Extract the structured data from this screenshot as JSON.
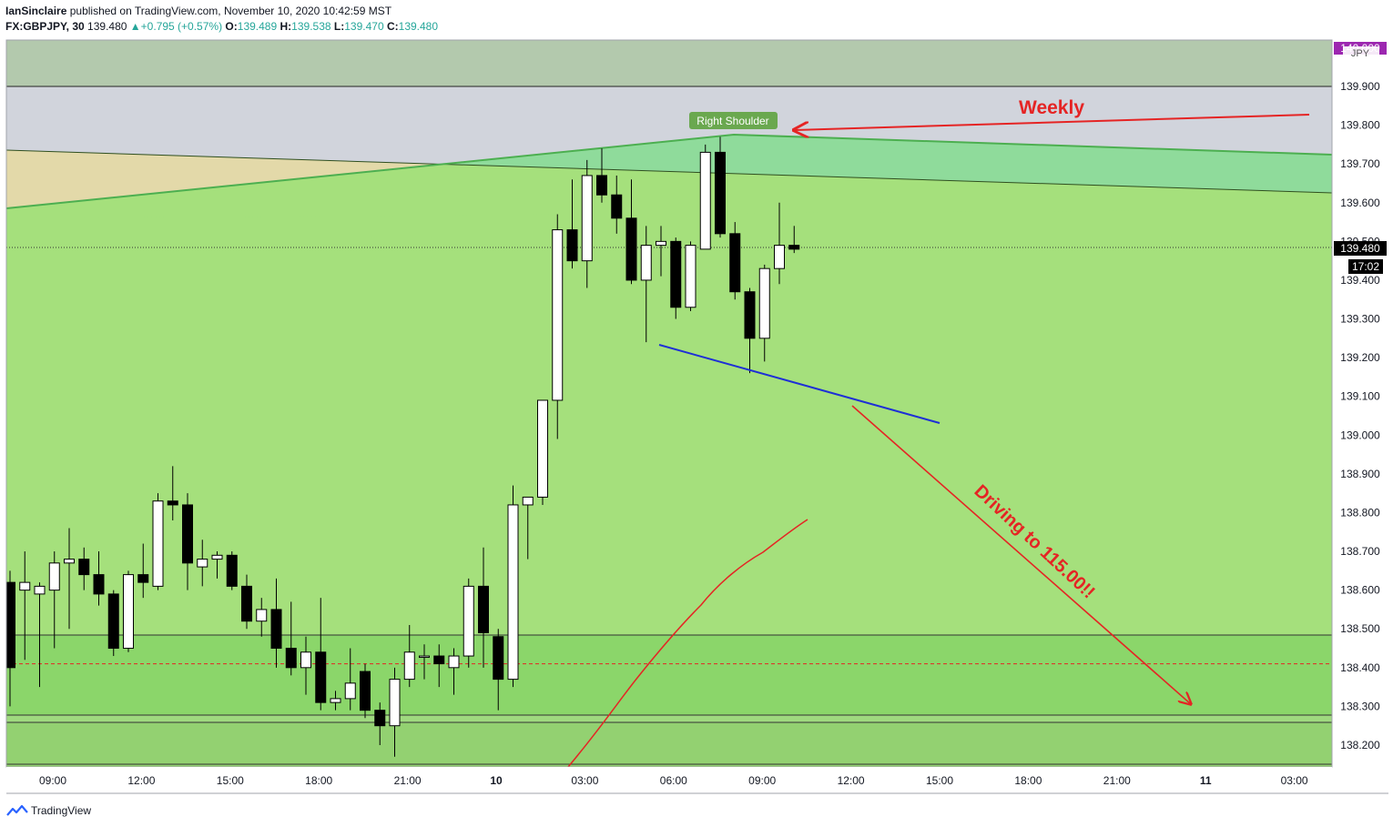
{
  "header": {
    "author": "IanSinclaire",
    "published_text": "published on TradingView.com, November 10, 2020 10:42:59 MST",
    "symbol": "FX:GBPJPY, 30",
    "last": "139.480",
    "change": "+0.795 (+0.57%)",
    "o_label": "O:",
    "o": "139.489",
    "h_label": "H:",
    "h": "139.538",
    "l_label": "L:",
    "l": "139.470",
    "c_label": "C:",
    "c": "139.480"
  },
  "footer": {
    "brand": "TradingView"
  },
  "price_axis": {
    "currency": "JPY",
    "top_label": "140.000",
    "labels": [
      "139.900",
      "139.800",
      "139.700",
      "139.600",
      "139.500",
      "139.400",
      "139.300",
      "139.200",
      "139.100",
      "139.000",
      "138.900",
      "138.800",
      "138.700",
      "138.600",
      "138.500",
      "138.400",
      "138.300",
      "138.200"
    ],
    "current_price": "139.480",
    "countdown": "17:02"
  },
  "time_axis": {
    "labels": [
      "09:00",
      "12:00",
      "15:00",
      "18:00",
      "21:00",
      "10",
      "03:00",
      "06:00",
      "09:00",
      "12:00",
      "15:00",
      "18:00",
      "21:00",
      "11",
      "03:00"
    ]
  },
  "annotations": {
    "right_shoulder": "Right Shoulder",
    "weekly": "Weekly",
    "driving": "Driving to 115.00!!"
  },
  "colors": {
    "up_candle": "#ffffff",
    "down_candle": "#000000",
    "zone_green": "#a5e07c",
    "zone_grey": "#d1d4dc",
    "annotation_red": "#e52424",
    "neckline_blue": "#1e2fd6",
    "shoulder_label_bg": "#6aa84f"
  },
  "chart_data": {
    "type": "candlestick",
    "symbol": "FX:GBPJPY",
    "interval": "30",
    "y_range": [
      138.15,
      140.0
    ],
    "candles": [
      [
        138.62,
        138.65,
        138.3,
        138.4
      ],
      [
        138.6,
        138.7,
        138.42,
        138.62
      ],
      [
        138.59,
        138.62,
        138.35,
        138.61
      ],
      [
        138.6,
        138.7,
        138.45,
        138.67
      ],
      [
        138.67,
        138.76,
        138.5,
        138.68
      ],
      [
        138.68,
        138.71,
        138.6,
        138.64
      ],
      [
        138.64,
        138.7,
        138.56,
        138.59
      ],
      [
        138.59,
        138.6,
        138.43,
        138.45
      ],
      [
        138.45,
        138.65,
        138.44,
        138.64
      ],
      [
        138.64,
        138.72,
        138.58,
        138.62
      ],
      [
        138.61,
        138.85,
        138.6,
        138.83
      ],
      [
        138.83,
        138.92,
        138.78,
        138.82
      ],
      [
        138.82,
        138.85,
        138.6,
        138.67
      ],
      [
        138.66,
        138.73,
        138.61,
        138.68
      ],
      [
        138.68,
        138.7,
        138.63,
        138.69
      ],
      [
        138.69,
        138.7,
        138.6,
        138.61
      ],
      [
        138.61,
        138.64,
        138.5,
        138.52
      ],
      [
        138.52,
        138.58,
        138.48,
        138.55
      ],
      [
        138.55,
        138.63,
        138.4,
        138.45
      ],
      [
        138.45,
        138.57,
        138.38,
        138.4
      ],
      [
        138.4,
        138.48,
        138.33,
        138.44
      ],
      [
        138.44,
        138.58,
        138.29,
        138.31
      ],
      [
        138.31,
        138.34,
        138.29,
        138.32
      ],
      [
        138.32,
        138.45,
        138.29,
        138.36
      ],
      [
        138.39,
        138.41,
        138.27,
        138.29
      ],
      [
        138.29,
        138.31,
        138.2,
        138.25
      ],
      [
        138.25,
        138.4,
        138.17,
        138.37
      ],
      [
        138.37,
        138.51,
        138.35,
        138.44
      ],
      [
        138.43,
        138.46,
        138.37,
        138.43
      ],
      [
        138.43,
        138.46,
        138.35,
        138.41
      ],
      [
        138.4,
        138.45,
        138.33,
        138.43
      ],
      [
        138.43,
        138.63,
        138.4,
        138.61
      ],
      [
        138.61,
        138.71,
        138.4,
        138.49
      ],
      [
        138.48,
        138.5,
        138.29,
        138.37
      ],
      [
        138.37,
        138.87,
        138.35,
        138.82
      ],
      [
        138.82,
        138.84,
        138.68,
        138.84
      ],
      [
        138.84,
        139.09,
        138.82,
        139.09
      ],
      [
        139.09,
        139.57,
        138.99,
        139.53
      ],
      [
        139.53,
        139.66,
        139.43,
        139.45
      ],
      [
        139.45,
        139.71,
        139.38,
        139.67
      ],
      [
        139.67,
        139.74,
        139.6,
        139.62
      ],
      [
        139.62,
        139.67,
        139.52,
        139.56
      ],
      [
        139.56,
        139.66,
        139.39,
        139.4
      ],
      [
        139.4,
        139.54,
        139.24,
        139.49
      ],
      [
        139.49,
        139.54,
        139.41,
        139.5
      ],
      [
        139.5,
        139.51,
        139.3,
        139.33
      ],
      [
        139.33,
        139.5,
        139.32,
        139.49
      ],
      [
        139.48,
        139.75,
        139.48,
        139.73
      ],
      [
        139.73,
        139.77,
        139.51,
        139.52
      ],
      [
        139.52,
        139.55,
        139.35,
        139.37
      ],
      [
        139.37,
        139.38,
        139.16,
        139.25
      ],
      [
        139.25,
        139.44,
        139.19,
        139.43
      ],
      [
        139.43,
        139.6,
        139.39,
        139.49
      ],
      [
        139.49,
        139.54,
        139.47,
        139.48
      ]
    ],
    "zones": [
      {
        "name": "weekly-grey-zone",
        "from": 139.9,
        "to": 140.0
      },
      {
        "name": "lower-support-zone",
        "from": 138.28,
        "to": 138.48
      },
      {
        "name": "bottom-support-zone",
        "from": 138.15,
        "to": 138.26
      }
    ],
    "reference_line": 138.41
  }
}
